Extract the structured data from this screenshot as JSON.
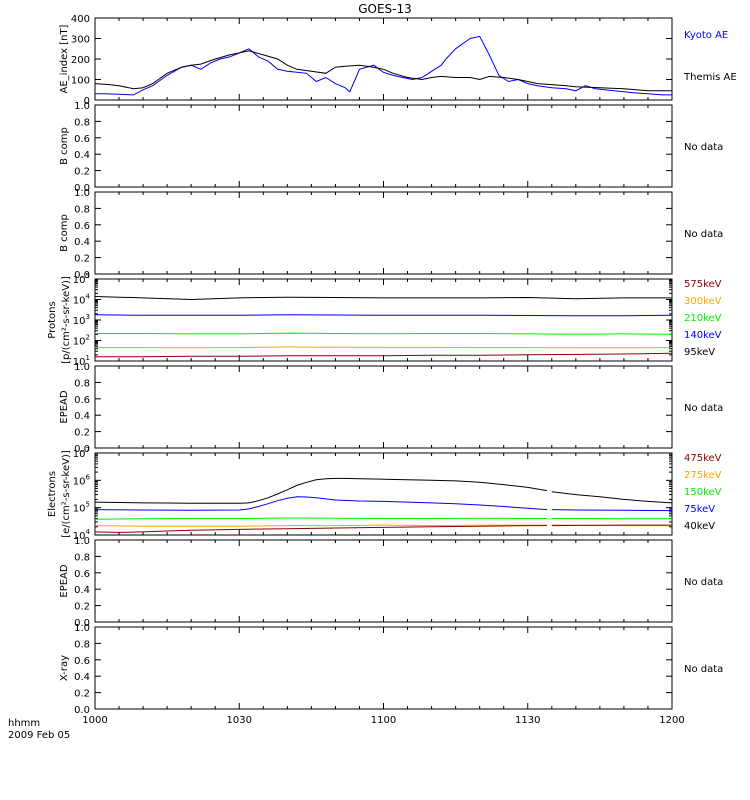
{
  "title": "GOES-13",
  "footer": {
    "hhmm": "hhmm",
    "date": "2009 Feb 05"
  },
  "x_axis": {
    "min": 0,
    "max": 120,
    "ticks": [
      0,
      30,
      60,
      90,
      120
    ],
    "tick_labels": [
      "1000",
      "1030",
      "1100",
      "1130",
      "1200"
    ]
  },
  "colors": {
    "black": "#000000",
    "blue": "#0000ff",
    "green": "#00ee00",
    "orange": "#ffa500",
    "darkred": "#8b0000"
  },
  "chart_data": [
    {
      "type": "line",
      "ylabel": "AE_index [nT]",
      "ylim": [
        0,
        400
      ],
      "yticks": [
        0,
        100,
        200,
        300,
        400
      ],
      "ytick_labels": [
        "0",
        "100",
        "200",
        "300",
        "400"
      ],
      "legend": [
        "Kyoto AE",
        "Themis AE"
      ],
      "series": [
        {
          "name": "Kyoto AE",
          "color": "#0000ff",
          "x": [
            0,
            2,
            5,
            8,
            10,
            12,
            15,
            18,
            20,
            22,
            24,
            26,
            28,
            30,
            32,
            34,
            36,
            38,
            40,
            42,
            44,
            46,
            48,
            50,
            52,
            53,
            55,
            58,
            60,
            62,
            64,
            66,
            68,
            70,
            72,
            73,
            75,
            78,
            80,
            82,
            84,
            86,
            88,
            90,
            92,
            95,
            98,
            100,
            102,
            104,
            106,
            108,
            110,
            112,
            115,
            118,
            120
          ],
          "y": [
            30,
            30,
            28,
            25,
            50,
            70,
            120,
            160,
            170,
            150,
            180,
            200,
            210,
            230,
            250,
            210,
            190,
            150,
            140,
            135,
            130,
            90,
            110,
            80,
            60,
            40,
            150,
            170,
            135,
            120,
            110,
            100,
            110,
            140,
            170,
            200,
            250,
            300,
            310,
            220,
            120,
            90,
            100,
            80,
            70,
            60,
            55,
            45,
            70,
            55,
            50,
            45,
            40,
            35,
            30,
            25,
            25
          ]
        },
        {
          "name": "Themis AE",
          "color": "#000000",
          "x": [
            0,
            3,
            5,
            8,
            10,
            12,
            15,
            18,
            20,
            22,
            25,
            28,
            30,
            32,
            35,
            38,
            40,
            42,
            45,
            48,
            50,
            52,
            55,
            58,
            60,
            62,
            65,
            68,
            70,
            72,
            75,
            78,
            80,
            82,
            85,
            88,
            90,
            92,
            95,
            98,
            100,
            105,
            110,
            115,
            120
          ],
          "y": [
            80,
            75,
            70,
            55,
            60,
            80,
            130,
            160,
            170,
            175,
            200,
            220,
            230,
            240,
            220,
            200,
            170,
            150,
            140,
            130,
            160,
            165,
            170,
            160,
            150,
            130,
            110,
            100,
            110,
            115,
            110,
            110,
            100,
            115,
            110,
            100,
            90,
            80,
            75,
            70,
            65,
            60,
            55,
            45,
            45
          ]
        }
      ]
    },
    {
      "type": "line",
      "ylabel": "B comp",
      "ylim": [
        0,
        1
      ],
      "yticks": [
        0,
        0.2,
        0.4,
        0.6,
        0.8,
        1
      ],
      "ytick_labels": [
        "0.0",
        "0.2",
        "0.4",
        "0.6",
        "0.8",
        "1.0"
      ],
      "note": "No data"
    },
    {
      "type": "line",
      "ylabel": "B comp",
      "ylim": [
        0,
        1
      ],
      "yticks": [
        0,
        0.2,
        0.4,
        0.6,
        0.8,
        1
      ],
      "ytick_labels": [
        "0.0",
        "0.2",
        "0.4",
        "0.6",
        "0.8",
        "1.0"
      ],
      "note": "No data"
    },
    {
      "type": "line",
      "ylabel": "Protons [p/(cm²-s-sr-keV)]",
      "ylabel_lines": [
        "Protons",
        "[p/(cm²-s-sr-keV)]"
      ],
      "yscale": "log",
      "ylim": [
        10,
        100000
      ],
      "ytick_exp": [
        1,
        2,
        3,
        4,
        5
      ],
      "legend": [
        "575keV",
        "300keV",
        "210keV",
        "140keV",
        "95keV"
      ],
      "series": [
        {
          "name": "95keV",
          "color": "#000000",
          "x": [
            0,
            10,
            20,
            30,
            40,
            50,
            60,
            70,
            80,
            90,
            100,
            110,
            120
          ],
          "y": [
            14000,
            12000,
            10000,
            12000,
            13000,
            12500,
            12000,
            12000,
            12000,
            12500,
            11000,
            12000,
            12000
          ]
        },
        {
          "name": "140keV",
          "color": "#0000ff",
          "x": [
            0,
            10,
            20,
            30,
            40,
            50,
            60,
            70,
            80,
            90,
            100,
            110,
            120
          ],
          "y": [
            1800,
            1700,
            1700,
            1700,
            1800,
            1750,
            1700,
            1700,
            1700,
            1650,
            1600,
            1600,
            1700
          ]
        },
        {
          "name": "210keV",
          "color": "#00ee00",
          "x": [
            0,
            10,
            20,
            30,
            40,
            50,
            60,
            70,
            80,
            90,
            100,
            110,
            120
          ],
          "y": [
            220,
            220,
            210,
            210,
            230,
            220,
            215,
            220,
            220,
            210,
            200,
            210,
            200
          ]
        },
        {
          "name": "300keV",
          "color": "#ffa500",
          "x": [
            0,
            10,
            20,
            30,
            40,
            50,
            60,
            70,
            80,
            90,
            100,
            110,
            120
          ],
          "y": [
            45,
            45,
            44,
            45,
            48,
            47,
            46,
            46,
            45,
            45,
            44,
            44,
            45
          ]
        },
        {
          "name": "575keV",
          "color": "#8b0000",
          "x": [
            0,
            10,
            20,
            30,
            40,
            50,
            60,
            70,
            80,
            90,
            100,
            110,
            120
          ],
          "y": [
            16,
            16,
            17,
            17,
            18,
            18,
            18,
            19,
            19,
            20,
            21,
            22,
            24
          ]
        }
      ]
    },
    {
      "type": "line",
      "ylabel": "EPEAD",
      "ylim": [
        0,
        1
      ],
      "yticks": [
        0,
        0.2,
        0.4,
        0.6,
        0.8,
        1
      ],
      "ytick_labels": [
        "0.0",
        "0.2",
        "0.4",
        "0.6",
        "0.8",
        "1.0"
      ],
      "note": "No data"
    },
    {
      "type": "line",
      "ylabel": "Electrons [e/(cm²-s-sr-keV)]",
      "ylabel_lines": [
        "Electrons",
        "[e/(cm²-s-sr-keV)]"
      ],
      "yscale": "log",
      "ylim": [
        10000,
        10000000
      ],
      "ytick_exp": [
        4,
        5,
        6,
        7
      ],
      "legend": [
        "475keV",
        "275keV",
        "150keV",
        "75keV",
        "40keV"
      ],
      "gap": [
        94,
        95
      ],
      "series": [
        {
          "name": "40keV",
          "color": "#000000",
          "x": [
            0,
            5,
            10,
            15,
            20,
            25,
            30,
            32,
            34,
            36,
            38,
            40,
            42,
            44,
            46,
            48,
            50,
            52,
            55,
            60,
            65,
            70,
            75,
            80,
            85,
            90,
            94,
            95,
            100,
            105,
            110,
            115,
            120
          ],
          "y": [
            160000,
            155000,
            150000,
            148000,
            145000,
            145000,
            145000,
            150000,
            180000,
            230000,
            320000,
            450000,
            650000,
            850000,
            1050000,
            1150000,
            1180000,
            1180000,
            1150000,
            1100000,
            1050000,
            1000000,
            950000,
            850000,
            700000,
            550000,
            420000,
            380000,
            300000,
            250000,
            200000,
            170000,
            150000
          ]
        },
        {
          "name": "75keV",
          "color": "#0000ff",
          "x": [
            0,
            10,
            20,
            30,
            32,
            34,
            36,
            38,
            40,
            42,
            44,
            46,
            48,
            50,
            55,
            60,
            65,
            70,
            75,
            80,
            85,
            90,
            94,
            95,
            100,
            110,
            120
          ],
          "y": [
            85000,
            82000,
            80000,
            82000,
            90000,
            110000,
            140000,
            180000,
            220000,
            250000,
            245000,
            230000,
            210000,
            190000,
            175000,
            170000,
            160000,
            150000,
            140000,
            125000,
            110000,
            95000,
            85000,
            85000,
            82000,
            80000,
            78000
          ]
        },
        {
          "name": "150keV",
          "color": "#00ee00",
          "x": [
            0,
            10,
            20,
            30,
            40,
            50,
            60,
            70,
            80,
            90,
            94,
            95,
            100,
            110,
            120
          ],
          "y": [
            38000,
            39000,
            40000,
            40000,
            42000,
            41000,
            40000,
            40000,
            41000,
            40000,
            40000,
            40000,
            40000,
            39000,
            39000
          ]
        },
        {
          "name": "275keV",
          "color": "#ffa500",
          "x": [
            0,
            10,
            20,
            30,
            40,
            50,
            60,
            70,
            80,
            90,
            94,
            95,
            100,
            110,
            120
          ],
          "y": [
            22000,
            21000,
            21000,
            21000,
            22000,
            22000,
            23000,
            22000,
            23000,
            23000,
            23000,
            23000,
            23000,
            22000,
            22000
          ]
        },
        {
          "name": "475keV",
          "color": "#8b0000",
          "x": [
            0,
            5,
            10,
            15,
            20,
            30,
            40,
            50,
            60,
            70,
            80,
            90,
            94,
            95,
            100,
            110,
            120
          ],
          "y": [
            13000,
            12500,
            13000,
            14000,
            15000,
            16000,
            17000,
            18000,
            19000,
            20000,
            21000,
            22000,
            22000,
            22000,
            22500,
            23000,
            23000
          ]
        }
      ]
    },
    {
      "type": "line",
      "ylabel": "EPEAD",
      "ylim": [
        0,
        1
      ],
      "yticks": [
        0,
        0.2,
        0.4,
        0.6,
        0.8,
        1
      ],
      "ytick_labels": [
        "0.0",
        "0.2",
        "0.4",
        "0.6",
        "0.8",
        "1.0"
      ],
      "note": "No data"
    },
    {
      "type": "line",
      "ylabel": "X-ray",
      "ylim": [
        0,
        1
      ],
      "yticks": [
        0,
        0.2,
        0.4,
        0.6,
        0.8,
        1
      ],
      "ytick_labels": [
        "0.0",
        "0.2",
        "0.4",
        "0.6",
        "0.8",
        "1.0"
      ],
      "note": "No data"
    }
  ]
}
